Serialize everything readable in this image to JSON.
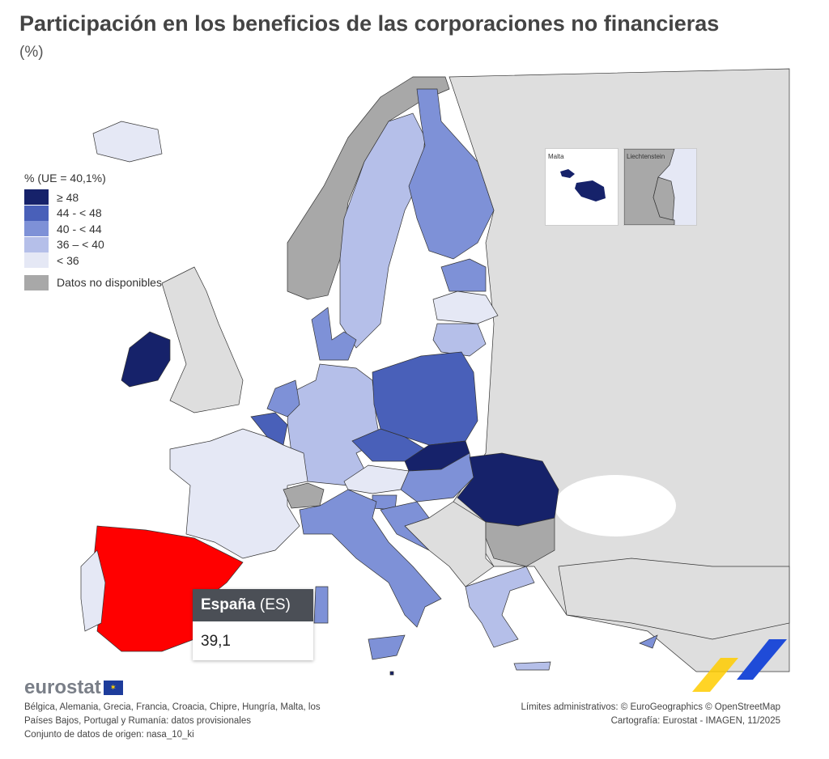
{
  "title": "Participación en los beneficios de las corporaciones no financieras",
  "subtitle": "(%)",
  "legend": {
    "title": "% (UE = 40,1%)",
    "classes": [
      {
        "label": "≥ 48",
        "color": "#16226a"
      },
      {
        "label": "44 - < 48",
        "color": "#4960b9"
      },
      {
        "label": "40 - < 44",
        "color": "#7e91d7"
      },
      {
        "label": "36 – < 40",
        "color": "#b5bfe9"
      },
      {
        "label": "< 36",
        "color": "#e5e8f5"
      }
    ],
    "na_label": "Datos no disponibles",
    "na_color": "#a8a8a8"
  },
  "colors": {
    "non_eu": "#dedede",
    "highlight": "#ff0000",
    "sea": "#ffffff"
  },
  "map": {
    "countries": [
      {
        "code": "IE",
        "class": 0
      },
      {
        "code": "NO",
        "class": "na"
      },
      {
        "code": "SE",
        "class": 3
      },
      {
        "code": "FI",
        "class": 2
      },
      {
        "code": "EE",
        "class": 2
      },
      {
        "code": "LV",
        "class": 4
      },
      {
        "code": "LT",
        "class": 3
      },
      {
        "code": "DK",
        "class": 2
      },
      {
        "code": "DE",
        "class": 3
      },
      {
        "code": "PL",
        "class": 1
      },
      {
        "code": "NL",
        "class": 2
      },
      {
        "code": "BE",
        "class": 1
      },
      {
        "code": "FR",
        "class": 4
      },
      {
        "code": "ES",
        "class": 3,
        "highlighted": true
      },
      {
        "code": "PT",
        "class": 4
      },
      {
        "code": "CZ",
        "class": 1
      },
      {
        "code": "SK",
        "class": 0
      },
      {
        "code": "AT",
        "class": 4
      },
      {
        "code": "HU",
        "class": 2
      },
      {
        "code": "RO",
        "class": 0
      },
      {
        "code": "BG",
        "class": "na"
      },
      {
        "code": "SI",
        "class": 2
      },
      {
        "code": "HR",
        "class": 2
      },
      {
        "code": "CH",
        "class": "na"
      },
      {
        "code": "IT",
        "class": 2
      },
      {
        "code": "GR",
        "class": 3
      },
      {
        "code": "CY",
        "class": 2
      },
      {
        "code": "IS",
        "class": 4
      },
      {
        "code": "MT",
        "class": 0
      }
    ]
  },
  "insets": {
    "malta": "Malta",
    "liechtenstein": "Liechtenstein"
  },
  "tooltip": {
    "name": "España",
    "code": "(ES)",
    "value": "39,1"
  },
  "logo": "eurostat",
  "footer": {
    "notes": [
      "Bélgica, Alemania, Grecia, Francia, Croacia, Chipre, Hungría, Malta, los",
      "Países Bajos, Portugal y Rumanía: datos provisionales",
      "Conjunto de datos de origen: nasa_10_ki"
    ],
    "credits": [
      "Límites administrativos: © EuroGeographics © OpenStreetMap",
      "Cartografía: Eurostat - IMAGEN, 11/2025"
    ]
  }
}
